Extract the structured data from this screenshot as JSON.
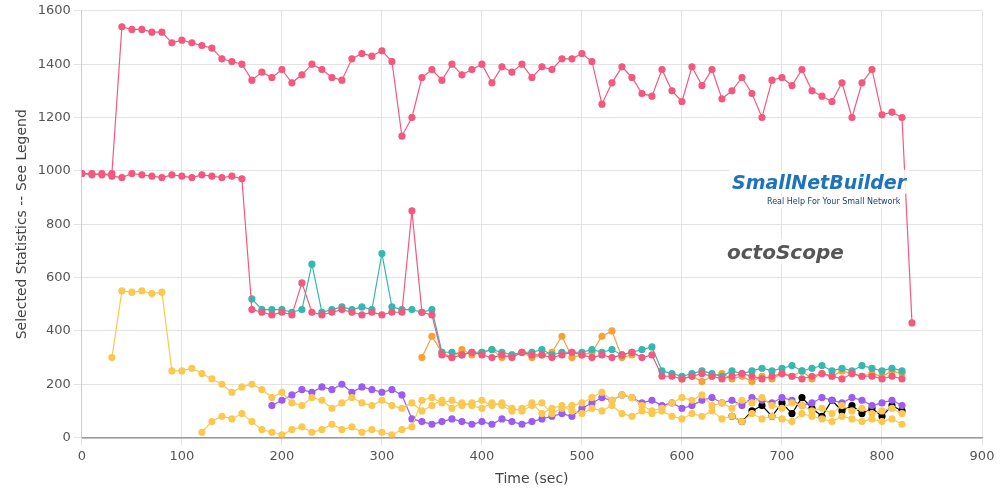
{
  "chart_data": {
    "type": "line",
    "x_label": "Time (sec)",
    "y_label": "Selected Statistics -- See Legend",
    "annotations": [
      "SmallNetBuilder",
      "Real Help For Your Small Network",
      "octoScope"
    ],
    "xlim": [
      0,
      900
    ],
    "xticks": [
      0,
      100,
      200,
      300,
      400,
      500,
      600,
      700,
      800,
      900
    ],
    "ylim": [
      0,
      1600
    ],
    "yticks": [
      0,
      200,
      400,
      600,
      800,
      1000,
      1200,
      1400,
      1600
    ],
    "grid": true,
    "marker": "circle",
    "line_style": "solid",
    "x": [
      0,
      10,
      20,
      30,
      40,
      50,
      60,
      70,
      80,
      90,
      100,
      110,
      120,
      130,
      140,
      150,
      160,
      170,
      180,
      190,
      200,
      210,
      220,
      230,
      240,
      250,
      260,
      270,
      280,
      290,
      300,
      310,
      320,
      330,
      340,
      350,
      360,
      370,
      380,
      390,
      400,
      410,
      420,
      430,
      440,
      450,
      460,
      470,
      480,
      490,
      500,
      510,
      520,
      530,
      540,
      550,
      560,
      570,
      580,
      590,
      600,
      610,
      620,
      630,
      640,
      650,
      660,
      670,
      680,
      690,
      700,
      710,
      720,
      730,
      740,
      750,
      760,
      770,
      780,
      790,
      800,
      810,
      820,
      830
    ],
    "series": [
      {
        "color": "#f4587e",
        "values": [
          990,
          990,
          985,
          990,
          1540,
          1530,
          1530,
          1520,
          1520,
          1480,
          1490,
          1480,
          1470,
          1460,
          1420,
          1410,
          1400,
          1340,
          1370,
          1350,
          1380,
          1330,
          1360,
          1400,
          1380,
          1350,
          1340,
          1420,
          1440,
          1430,
          1450,
          1410,
          1130,
          1200,
          1350,
          1380,
          1340,
          1400,
          1360,
          1380,
          1400,
          1330,
          1390,
          1370,
          1400,
          1350,
          1390,
          1380,
          1420,
          1420,
          1440,
          1410,
          1250,
          1330,
          1390,
          1350,
          1290,
          1280,
          1380,
          1300,
          1260,
          1390,
          1320,
          1380,
          1270,
          1300,
          1350,
          1290,
          1200,
          1340,
          1350,
          1320,
          1380,
          1300,
          1280,
          1260,
          1330,
          1200,
          1330,
          1380,
          1210,
          1220,
          1200,
          430
        ]
      },
      {
        "color": "#f4587e",
        "values": [
          990,
          985,
          990,
          980,
          975,
          990,
          985,
          980,
          975,
          985,
          980,
          975,
          985,
          980,
          975,
          980,
          970,
          480,
          470,
          460,
          470,
          460,
          580,
          470,
          460,
          470,
          480,
          470,
          460,
          470,
          460,
          470,
          470,
          850,
          470,
          460,
          310,
          300,
          310,
          320,
          310,
          300,
          310,
          300,
          320,
          310,
          310,
          300,
          310,
          320,
          310,
          300,
          310,
          300,
          310,
          320,
          300,
          310,
          230,
          230,
          220,
          230,
          240,
          230,
          220,
          230,
          240,
          230,
          220,
          230,
          240,
          230,
          220,
          230,
          240,
          230,
          220,
          240,
          230,
          230,
          220,
          230,
          220,
          null
        ]
      },
      {
        "color": "#35b8b0",
        "values": [
          null,
          null,
          null,
          null,
          null,
          null,
          null,
          null,
          null,
          null,
          null,
          null,
          null,
          null,
          null,
          null,
          null,
          520,
          480,
          480,
          480,
          470,
          480,
          650,
          470,
          480,
          490,
          480,
          490,
          480,
          690,
          490,
          480,
          480,
          470,
          480,
          320,
          320,
          310,
          320,
          320,
          330,
          320,
          310,
          320,
          320,
          330,
          310,
          320,
          320,
          320,
          330,
          320,
          330,
          310,
          320,
          330,
          340,
          250,
          240,
          230,
          240,
          250,
          240,
          230,
          250,
          240,
          250,
          260,
          250,
          260,
          270,
          250,
          260,
          270,
          250,
          260,
          250,
          270,
          260,
          250,
          260,
          250,
          null
        ]
      },
      {
        "color": "#fbc850",
        "values": [
          null,
          null,
          null,
          300,
          550,
          545,
          550,
          540,
          545,
          250,
          250,
          260,
          240,
          220,
          200,
          170,
          190,
          200,
          180,
          150,
          170,
          130,
          120,
          150,
          140,
          110,
          130,
          150,
          130,
          120,
          140,
          120,
          110,
          130,
          100,
          120,
          140,
          110,
          130,
          120,
          110,
          130,
          120,
          100,
          110,
          130,
          90,
          110,
          120,
          100,
          90,
          110,
          100,
          120,
          90,
          80,
          100,
          90,
          100,
          80,
          70,
          90,
          80,
          100,
          70,
          80,
          60,
          90,
          70,
          80,
          70,
          60,
          90,
          80,
          70,
          60,
          80,
          70,
          60,
          70,
          60,
          70,
          50,
          null
        ]
      },
      {
        "color": "#fbc850",
        "values": [
          null,
          null,
          null,
          null,
          null,
          null,
          null,
          null,
          null,
          null,
          null,
          null,
          20,
          60,
          80,
          70,
          90,
          60,
          30,
          20,
          10,
          30,
          40,
          20,
          30,
          50,
          30,
          40,
          20,
          30,
          20,
          10,
          30,
          40,
          140,
          150,
          130,
          140,
          120,
          130,
          140,
          120,
          130,
          110,
          100,
          120,
          130,
          90,
          110,
          120,
          130,
          150,
          170,
          140,
          160,
          150,
          120,
          100,
          110,
          130,
          150,
          140,
          160,
          120,
          130,
          110,
          140,
          130,
          150,
          120,
          110,
          130,
          120,
          100,
          110,
          90,
          120,
          100,
          110,
          90,
          100,
          110,
          90,
          null
        ]
      },
      {
        "color": "#9a5cf2",
        "values": [
          null,
          null,
          null,
          null,
          null,
          null,
          null,
          null,
          null,
          null,
          null,
          null,
          null,
          null,
          null,
          null,
          null,
          null,
          null,
          120,
          140,
          160,
          180,
          170,
          190,
          180,
          200,
          170,
          190,
          180,
          170,
          180,
          160,
          70,
          60,
          50,
          60,
          70,
          60,
          50,
          60,
          50,
          70,
          60,
          50,
          60,
          70,
          80,
          90,
          80,
          110,
          130,
          150,
          140,
          160,
          150,
          130,
          140,
          120,
          130,
          110,
          120,
          140,
          150,
          130,
          140,
          120,
          150,
          140,
          130,
          150,
          140,
          120,
          130,
          150,
          140,
          130,
          150,
          140,
          120,
          130,
          140,
          120,
          null
        ]
      },
      {
        "color": "#f7a13a",
        "values": [
          null,
          null,
          null,
          null,
          null,
          null,
          null,
          null,
          null,
          null,
          null,
          null,
          null,
          null,
          null,
          null,
          null,
          null,
          null,
          null,
          null,
          null,
          null,
          null,
          null,
          null,
          null,
          null,
          null,
          null,
          null,
          null,
          null,
          null,
          300,
          380,
          320,
          300,
          330,
          310,
          320,
          330,
          300,
          310,
          320,
          300,
          310,
          320,
          380,
          300,
          310,
          320,
          380,
          400,
          300,
          310,
          null,
          null,
          null,
          null,
          220,
          230,
          210,
          230,
          240,
          220,
          230,
          210,
          230,
          220,
          240,
          230,
          250,
          220,
          240,
          230,
          250,
          240,
          230,
          240,
          230,
          250,
          240,
          null
        ]
      },
      {
        "color": "#000000",
        "values": [
          null,
          null,
          null,
          null,
          null,
          null,
          null,
          null,
          null,
          null,
          null,
          null,
          null,
          null,
          null,
          null,
          null,
          null,
          null,
          null,
          null,
          null,
          null,
          null,
          null,
          null,
          null,
          null,
          null,
          null,
          null,
          null,
          null,
          null,
          null,
          null,
          null,
          null,
          null,
          null,
          null,
          null,
          null,
          null,
          null,
          null,
          null,
          null,
          null,
          null,
          null,
          null,
          null,
          null,
          null,
          null,
          null,
          null,
          null,
          null,
          null,
          null,
          null,
          null,
          null,
          80,
          60,
          100,
          120,
          80,
          130,
          90,
          150,
          110,
          80,
          140,
          100,
          120,
          90,
          110,
          80,
          120,
          100,
          null
        ]
      }
    ]
  }
}
